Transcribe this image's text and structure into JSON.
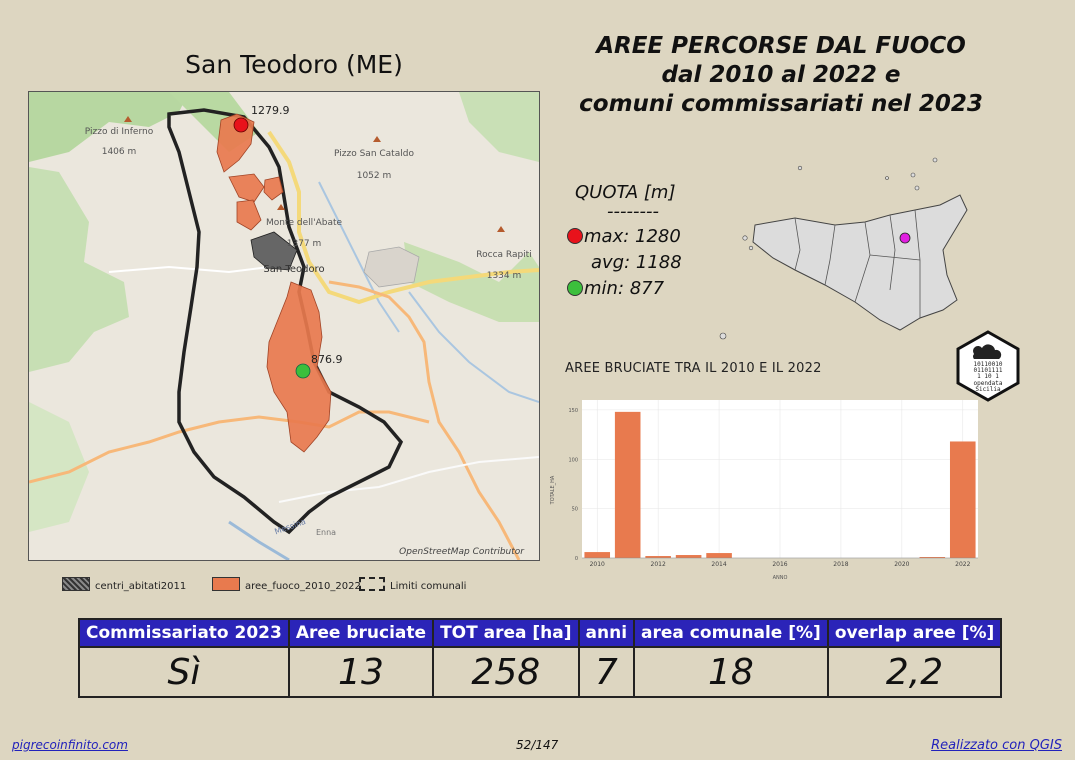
{
  "map_title": "San Teodoro (ME)",
  "main_title": {
    "line1": "AREE PERCORSE DAL FUOCO",
    "line2": "dal 2010 al 2022 e",
    "line3": "comuni commissariati nel 2023"
  },
  "map_labels": {
    "max_marker": "1279.9",
    "min_marker": "876.9",
    "pizzo_inferno": "Pizzo di Inferno",
    "pizzo_inferno_alt": "1406 m",
    "pizzo_cataldo": "Pizzo San Cataldo",
    "pizzo_cataldo_alt": "1052 m",
    "monte_abate": "Monte dell'Abate",
    "monte_abate_alt": "1377 m",
    "rocca_rapiti": "Rocca Rapiti",
    "rocca_rapiti_alt": "1334 m",
    "san_teodoro": "San Teodoro",
    "enna": "Enna",
    "messina": "Messina",
    "attribution": "OpenStreetMap Contributor"
  },
  "quota": {
    "title": "QUOTA [m]",
    "separator": "--------",
    "max_label": "max: 1280",
    "avg_label": "avg: 1188",
    "min_label": "min: 877",
    "max_color": "#e8121b",
    "min_color": "#3cbf3c"
  },
  "badge": {
    "bits1": "10110010",
    "bits2": "01101111",
    "bits3": "1   10 1",
    "text1": "opendata",
    "text2": "Sicilia"
  },
  "chart_title": "AREE BRUCIATE TRA IL 2010 E IL 2022",
  "chart_data": {
    "type": "bar",
    "x": [
      2010,
      2011,
      2012,
      2013,
      2014,
      2015,
      2016,
      2017,
      2018,
      2019,
      2020,
      2021,
      2022
    ],
    "values": [
      6,
      148,
      2,
      3,
      5,
      0,
      0,
      0,
      0,
      0,
      0,
      1,
      118
    ],
    "xticks": [
      "2010",
      "2012",
      "2014",
      "2016",
      "2018",
      "2020",
      "2022"
    ],
    "yticks": [
      "0",
      "50",
      "100",
      "150"
    ],
    "ylim": [
      0,
      160
    ],
    "xlabel": "ANNO",
    "ylabel": "TOTALE_HA",
    "bar_color": "#e87a4e"
  },
  "legend": {
    "centri": "centri_abitati2011",
    "aree": "aree_fuoco_2010_2022",
    "limiti": "Limiti comunali"
  },
  "table": {
    "headers": [
      "Commissariato 2023",
      "Aree bruciate",
      "TOT area [ha]",
      "anni",
      "area comunale [%]",
      "overlap aree [%]"
    ],
    "values": [
      "Sì",
      "13",
      "258",
      "7",
      "18",
      "2,2"
    ]
  },
  "footer": {
    "left": "pigrecoinfinito.com",
    "page": "52/147",
    "right": "Realizzato con QGIS"
  },
  "colors": {
    "background": "#ddd6c1",
    "header_blue": "#2b24b8",
    "burned_area": "#e87a4e",
    "selected_comune": "#e11ee1"
  }
}
